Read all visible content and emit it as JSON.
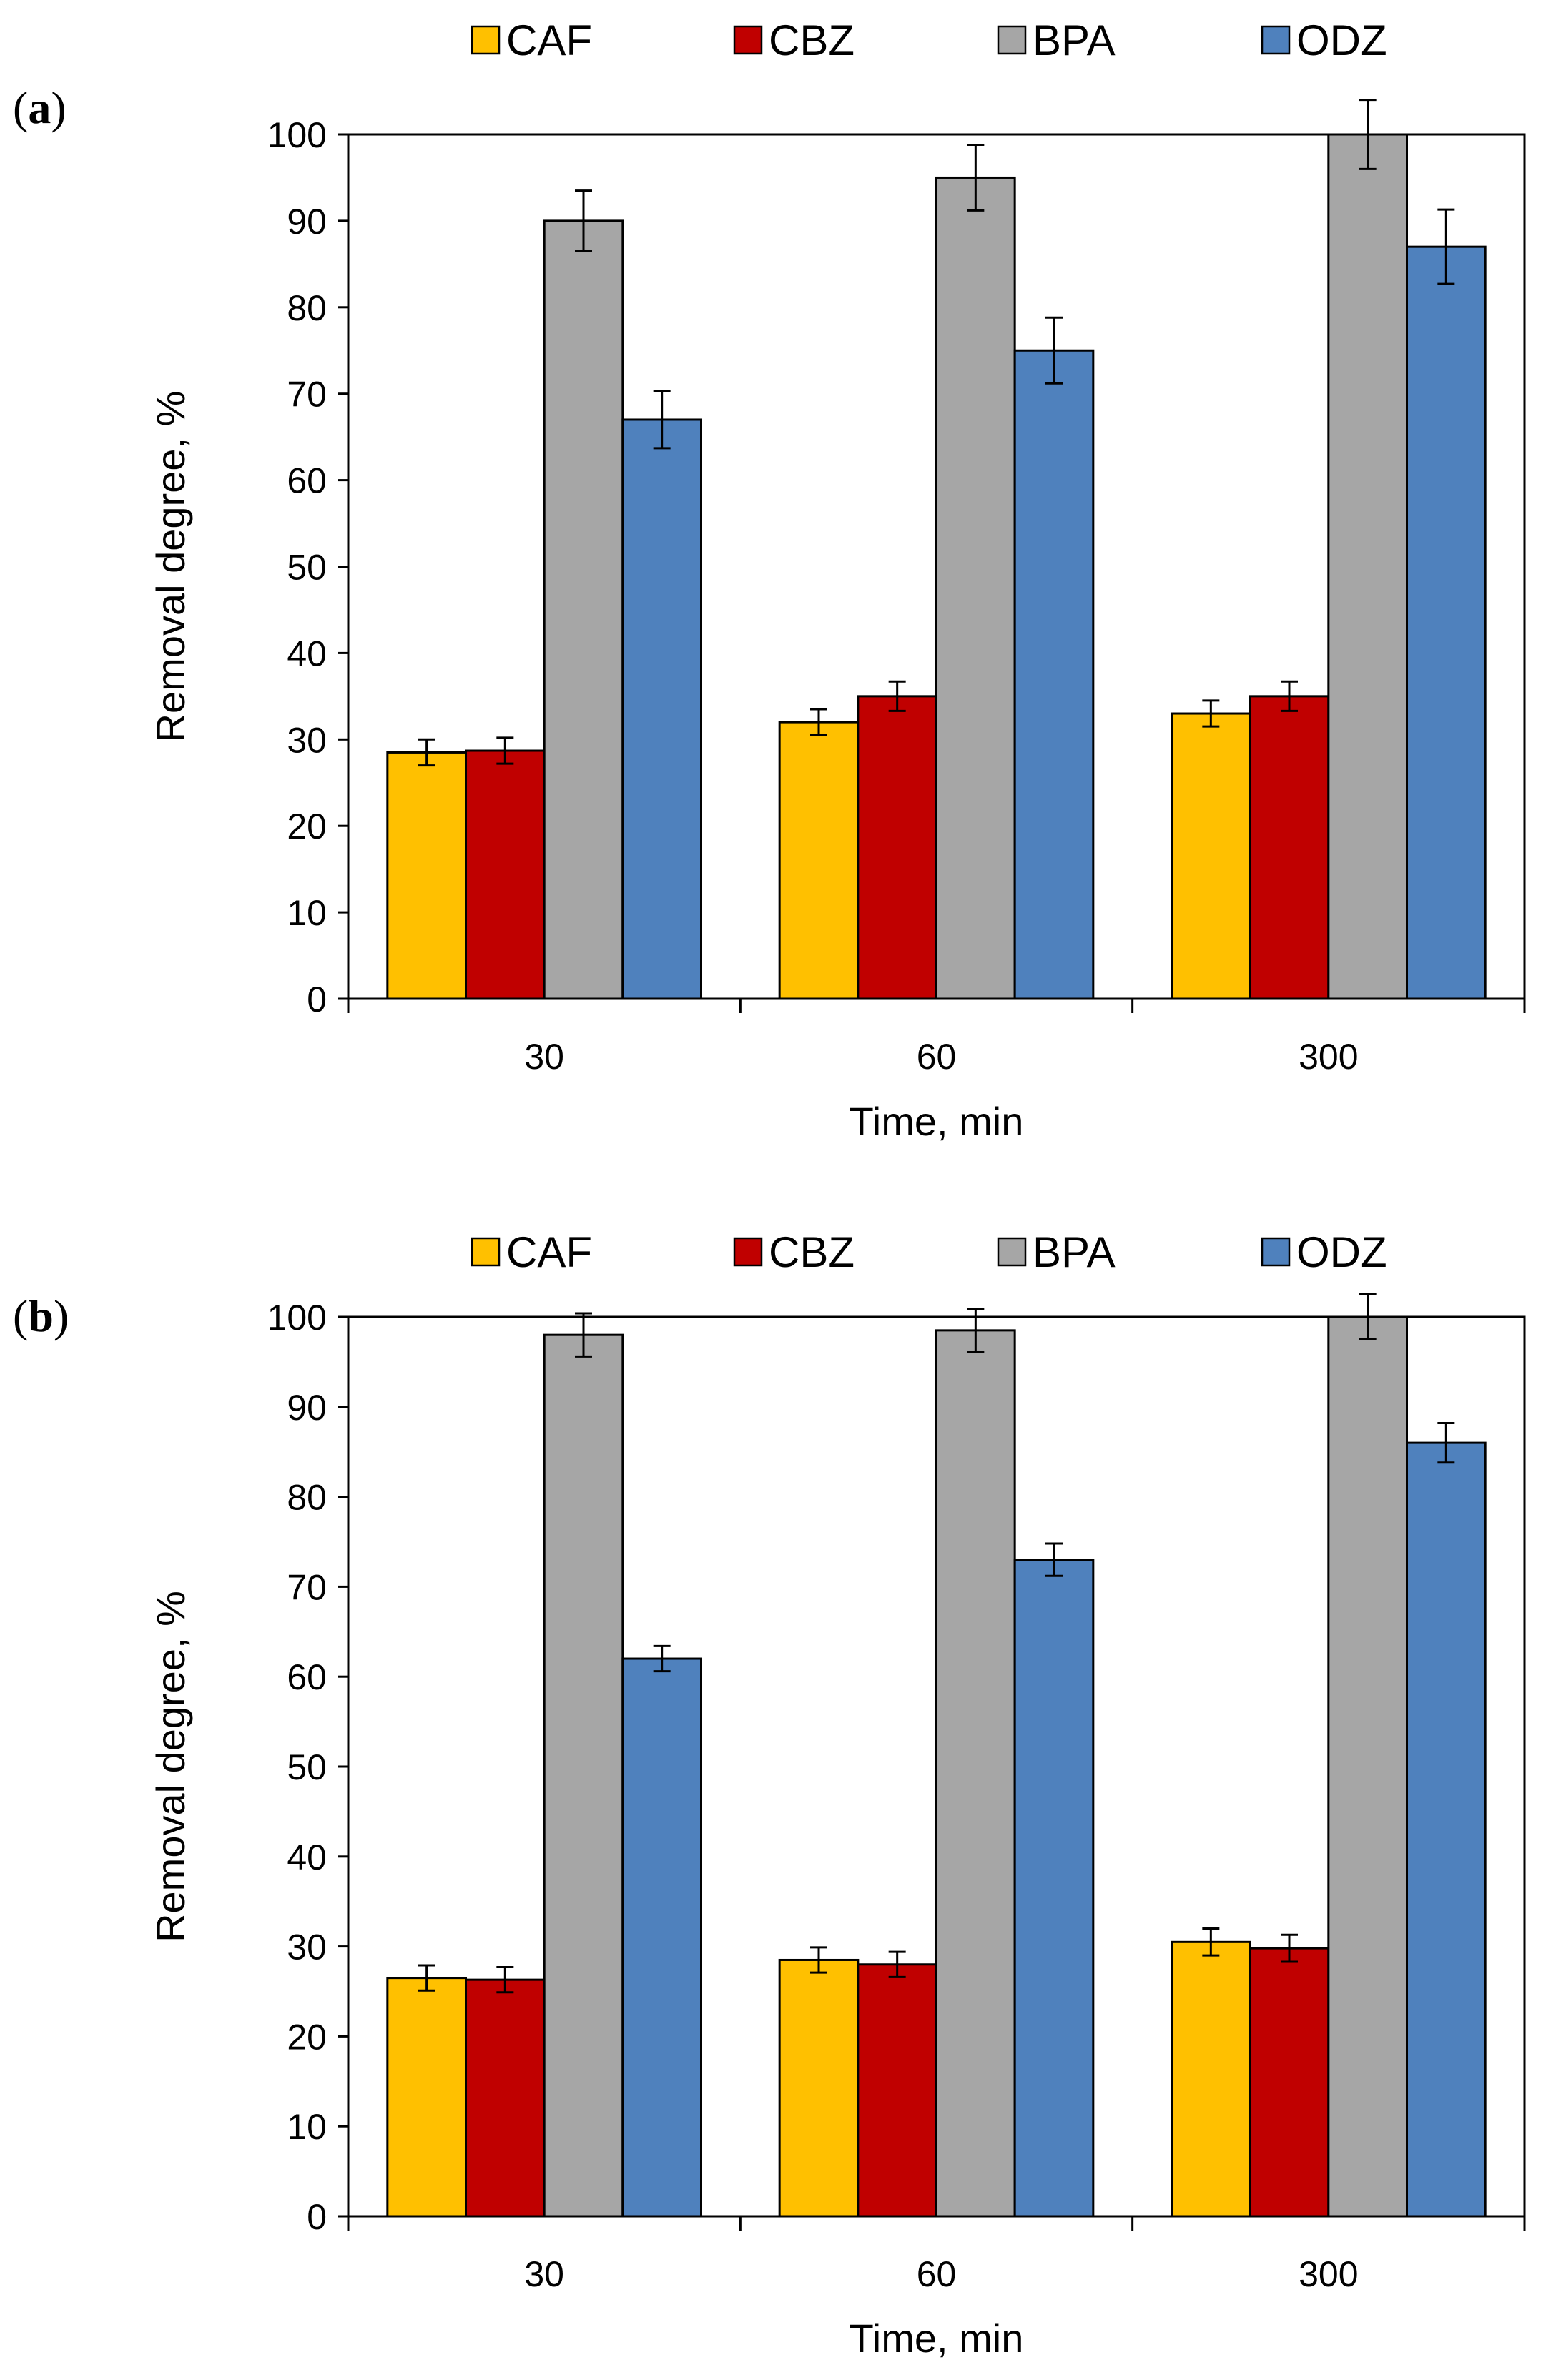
{
  "chart_data": [
    {
      "panel_label_open": "(",
      "panel_label_letter": "a",
      "panel_label_close": ")",
      "type": "bar",
      "categories": [
        "30",
        "60",
        "300"
      ],
      "xlabel": "Time, min",
      "ylabel": "Removal degree, %",
      "ylim": [
        0,
        100
      ],
      "yticks": [
        0,
        10,
        20,
        30,
        40,
        50,
        60,
        70,
        80,
        90,
        100
      ],
      "legend_position": "top",
      "series": [
        {
          "name": "CAF",
          "color": "#FFC000",
          "values": [
            28.5,
            32,
            33
          ],
          "errors": [
            1.5,
            1.5,
            1.5
          ]
        },
        {
          "name": "CBZ",
          "color": "#C00000",
          "values": [
            28.7,
            35,
            35
          ],
          "errors": [
            1.5,
            1.7,
            1.7
          ]
        },
        {
          "name": "BPA",
          "color": "#A6A6A6",
          "values": [
            90,
            95,
            100
          ],
          "errors": [
            3.5,
            3.8,
            4
          ]
        },
        {
          "name": "ODZ",
          "color": "#4F81BD",
          "values": [
            67,
            75,
            87
          ],
          "errors": [
            3.3,
            3.8,
            4.3
          ]
        }
      ]
    },
    {
      "panel_label_open": "(",
      "panel_label_letter": "b",
      "panel_label_close": ")",
      "type": "bar",
      "categories": [
        "30",
        "60",
        "300"
      ],
      "xlabel": "Time, min",
      "ylabel": "Removal degree, %",
      "ylim": [
        0,
        100
      ],
      "yticks": [
        0,
        10,
        20,
        30,
        40,
        50,
        60,
        70,
        80,
        90,
        100
      ],
      "legend_position": "top",
      "series": [
        {
          "name": "CAF",
          "color": "#FFC000",
          "values": [
            26.5,
            28.5,
            30.5
          ],
          "errors": [
            1.4,
            1.4,
            1.5
          ]
        },
        {
          "name": "CBZ",
          "color": "#C00000",
          "values": [
            26.3,
            28,
            29.8
          ],
          "errors": [
            1.4,
            1.4,
            1.5
          ]
        },
        {
          "name": "BPA",
          "color": "#A6A6A6",
          "values": [
            98,
            98.5,
            100
          ],
          "errors": [
            2.4,
            2.4,
            2.5
          ]
        },
        {
          "name": "ODZ",
          "color": "#4F81BD",
          "values": [
            62,
            73,
            86
          ],
          "errors": [
            1.4,
            1.8,
            2.2
          ]
        }
      ]
    }
  ]
}
